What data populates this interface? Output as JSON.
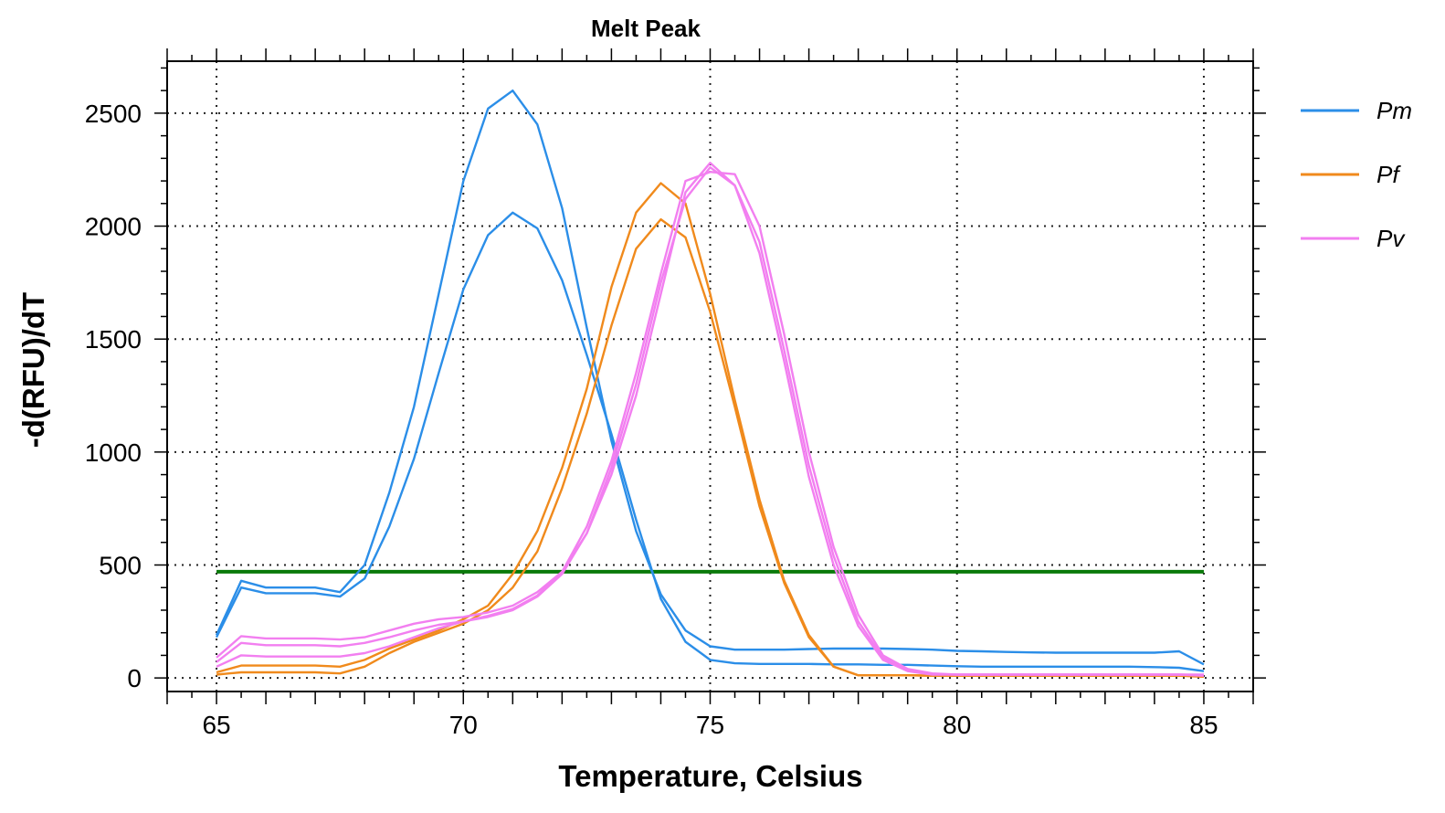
{
  "chart_data": {
    "type": "line",
    "title": "Melt Peak",
    "xlabel": "Temperature, Celsius",
    "ylabel": "-d(RFU)/dT",
    "xlim": [
      64,
      86
    ],
    "ylim": [
      -60,
      2730
    ],
    "xticks": [
      65,
      70,
      75,
      80,
      85
    ],
    "yticks": [
      0,
      500,
      1000,
      1500,
      2000,
      2500
    ],
    "grid": true,
    "threshold": {
      "value": 470,
      "color": "#0a7a0a"
    },
    "legend": [
      {
        "label": "Pm",
        "color": "#2b8ee8"
      },
      {
        "label": "Pf",
        "color": "#f08a1c"
      },
      {
        "label": "Pv",
        "color": "#f27ff0"
      }
    ],
    "x": [
      65,
      65.5,
      66,
      66.5,
      67,
      67.5,
      68,
      68.5,
      69,
      69.5,
      70,
      70.5,
      71,
      71.5,
      72,
      72.5,
      73,
      73.5,
      74,
      74.5,
      75,
      75.5,
      76,
      76.5,
      77,
      77.5,
      78,
      78.5,
      79,
      79.5,
      80,
      80.5,
      81,
      81.5,
      82,
      82.5,
      83,
      83.5,
      84,
      84.5,
      85
    ],
    "series": [
      {
        "name": "Pm",
        "group": "Pm",
        "values": [
          190,
          430,
          400,
          400,
          400,
          380,
          500,
          820,
          1200,
          1700,
          2200,
          2520,
          2600,
          2450,
          2080,
          1550,
          1050,
          650,
          370,
          210,
          140,
          125,
          125,
          125,
          128,
          130,
          130,
          130,
          128,
          125,
          120,
          118,
          115,
          113,
          112,
          112,
          112,
          112,
          112,
          118,
          60
        ]
      },
      {
        "name": "Pm",
        "group": "Pm",
        "values": [
          180,
          400,
          375,
          375,
          375,
          360,
          440,
          670,
          970,
          1350,
          1720,
          1960,
          2060,
          1990,
          1760,
          1430,
          1080,
          700,
          350,
          160,
          80,
          65,
          62,
          62,
          62,
          60,
          60,
          58,
          58,
          55,
          52,
          50,
          50,
          50,
          50,
          50,
          50,
          50,
          48,
          45,
          30
        ]
      },
      {
        "name": "Pf",
        "group": "Pf",
        "values": [
          25,
          55,
          55,
          55,
          55,
          50,
          80,
          130,
          170,
          210,
          260,
          320,
          460,
          650,
          930,
          1280,
          1730,
          2060,
          2190,
          2100,
          1700,
          1230,
          790,
          430,
          190,
          50,
          12,
          12,
          12,
          10,
          10,
          10,
          10,
          10,
          10,
          10,
          10,
          10,
          10,
          10,
          10
        ]
      },
      {
        "name": "Pf",
        "group": "Pf",
        "values": [
          15,
          25,
          25,
          25,
          25,
          20,
          50,
          110,
          160,
          200,
          240,
          300,
          400,
          560,
          840,
          1170,
          1560,
          1900,
          2030,
          1950,
          1620,
          1200,
          760,
          420,
          180,
          50,
          12,
          12,
          12,
          10,
          10,
          10,
          10,
          10,
          10,
          10,
          10,
          10,
          10,
          10,
          5
        ]
      },
      {
        "name": "Pv",
        "group": "Pv",
        "values": [
          90,
          185,
          175,
          175,
          175,
          170,
          180,
          210,
          240,
          260,
          270,
          290,
          320,
          380,
          470,
          640,
          900,
          1250,
          1700,
          2150,
          2280,
          2180,
          1880,
          1400,
          890,
          500,
          230,
          80,
          30,
          15,
          15,
          15,
          15,
          15,
          15,
          15,
          15,
          15,
          15,
          15,
          15
        ]
      },
      {
        "name": "Pv",
        "group": "Pv",
        "values": [
          70,
          155,
          145,
          145,
          145,
          140,
          155,
          180,
          210,
          235,
          250,
          275,
          305,
          365,
          470,
          670,
          960,
          1350,
          1790,
          2200,
          2240,
          2230,
          2000,
          1520,
          1000,
          580,
          280,
          100,
          40,
          20,
          15,
          15,
          15,
          15,
          15,
          15,
          15,
          15,
          15,
          15,
          12
        ]
      },
      {
        "name": "Pv",
        "group": "Pv",
        "values": [
          50,
          100,
          95,
          95,
          95,
          95,
          110,
          140,
          180,
          220,
          250,
          270,
          300,
          360,
          460,
          640,
          930,
          1300,
          1750,
          2120,
          2260,
          2180,
          1930,
          1450,
          940,
          540,
          250,
          90,
          35,
          18,
          15,
          15,
          15,
          15,
          15,
          15,
          15,
          15,
          15,
          15,
          10
        ]
      }
    ]
  }
}
